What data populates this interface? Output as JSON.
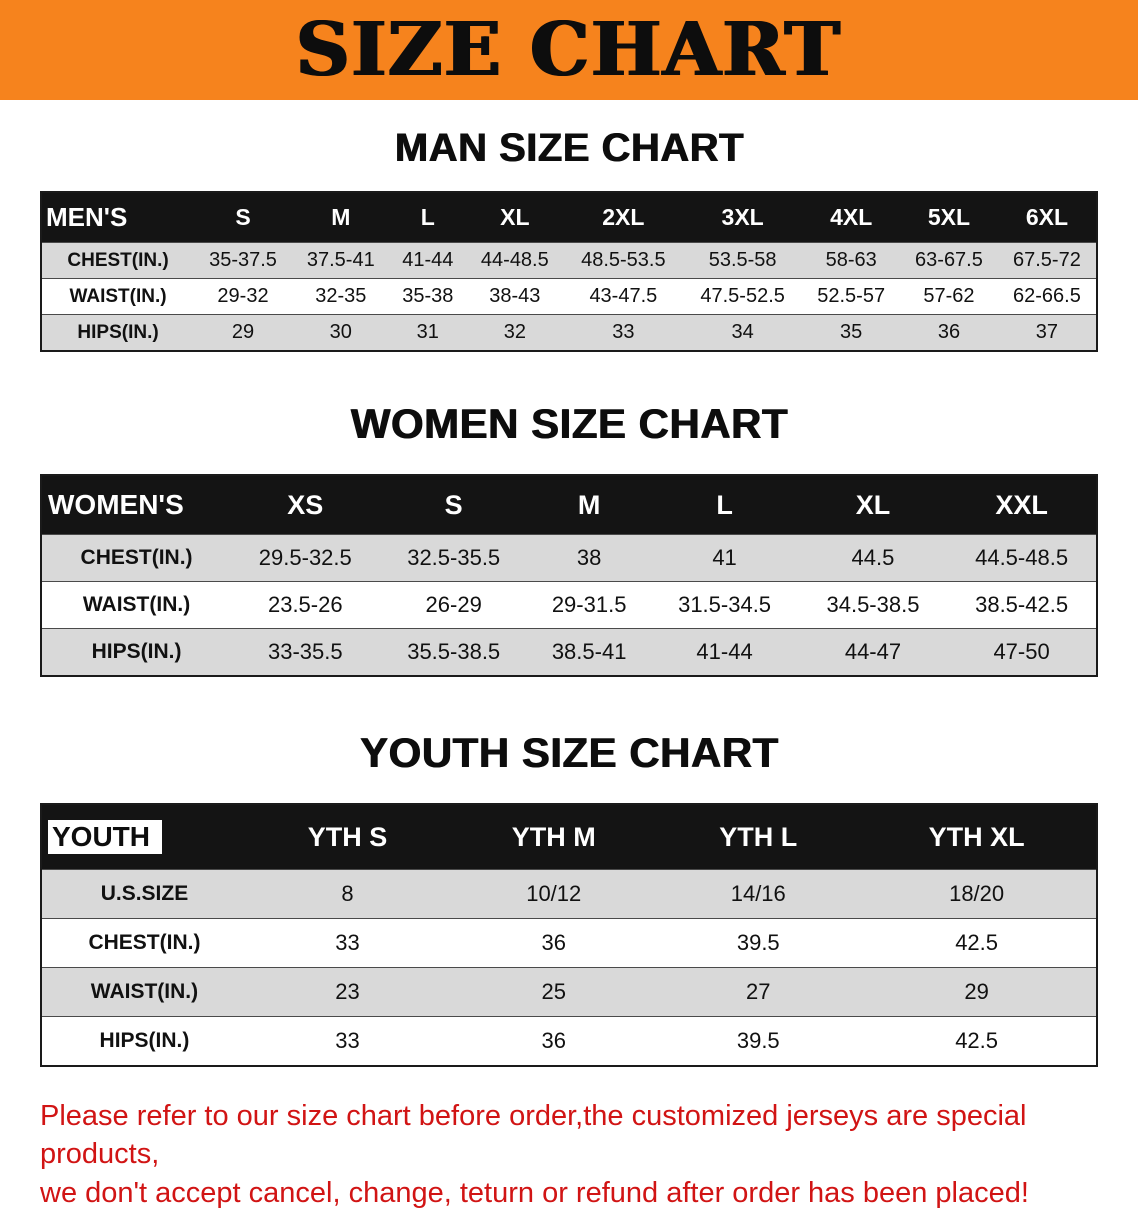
{
  "banner": {
    "title": "SIZE CHART"
  },
  "colors": {
    "banner_bg": "#f6831d",
    "table_header_bg": "#141414",
    "row_stripe": "#d9d9d9",
    "disclaimer_text": "#d11414"
  },
  "sections": [
    {
      "id": "men",
      "heading": "MAN SIZE CHART",
      "corner_highlight": false,
      "header": [
        "MEN'S",
        "S",
        "M",
        "L",
        "XL",
        "2XL",
        "3XL",
        "4XL",
        "5XL",
        "6XL"
      ],
      "rows": [
        [
          "CHEST(IN.)",
          "35-37.5",
          "37.5-41",
          "41-44",
          "44-48.5",
          "48.5-53.5",
          "53.5-58",
          "58-63",
          "63-67.5",
          "67.5-72"
        ],
        [
          "WAIST(IN.)",
          "29-32",
          "32-35",
          "35-38",
          "38-43",
          "43-47.5",
          "47.5-52.5",
          "52.5-57",
          "57-62",
          "62-66.5"
        ],
        [
          "HIPS(IN.)",
          "29",
          "30",
          "31",
          "32",
          "33",
          "34",
          "35",
          "36",
          "37"
        ]
      ]
    },
    {
      "id": "women",
      "heading": "WOMEN SIZE CHART",
      "corner_highlight": false,
      "header": [
        "WOMEN'S",
        "XS",
        "S",
        "M",
        "L",
        "XL",
        "XXL"
      ],
      "rows": [
        [
          "CHEST(IN.)",
          "29.5-32.5",
          "32.5-35.5",
          "38",
          "41",
          "44.5",
          "44.5-48.5"
        ],
        [
          "WAIST(IN.)",
          "23.5-26",
          "26-29",
          "29-31.5",
          "31.5-34.5",
          "34.5-38.5",
          "38.5-42.5"
        ],
        [
          "HIPS(IN.)",
          "33-35.5",
          "35.5-38.5",
          "38.5-41",
          "41-44",
          "44-47",
          "47-50"
        ]
      ]
    },
    {
      "id": "youth",
      "heading": "YOUTH SIZE CHART",
      "corner_highlight": true,
      "header": [
        "YOUTH",
        "YTH S",
        "YTH M",
        "YTH L",
        "YTH XL"
      ],
      "rows": [
        [
          "U.S.SIZE",
          "8",
          "10/12",
          "14/16",
          "18/20"
        ],
        [
          "CHEST(IN.)",
          "33",
          "36",
          "39.5",
          "42.5"
        ],
        [
          "WAIST(IN.)",
          "23",
          "25",
          "27",
          "29"
        ],
        [
          "HIPS(IN.)",
          "33",
          "36",
          "39.5",
          "42.5"
        ]
      ]
    }
  ],
  "disclaimer": {
    "line1": "Please refer to our size chart before order,the customized jerseys are special products,",
    "line2": "we don't accept cancel, change, teturn or refund after order has been placed!"
  }
}
